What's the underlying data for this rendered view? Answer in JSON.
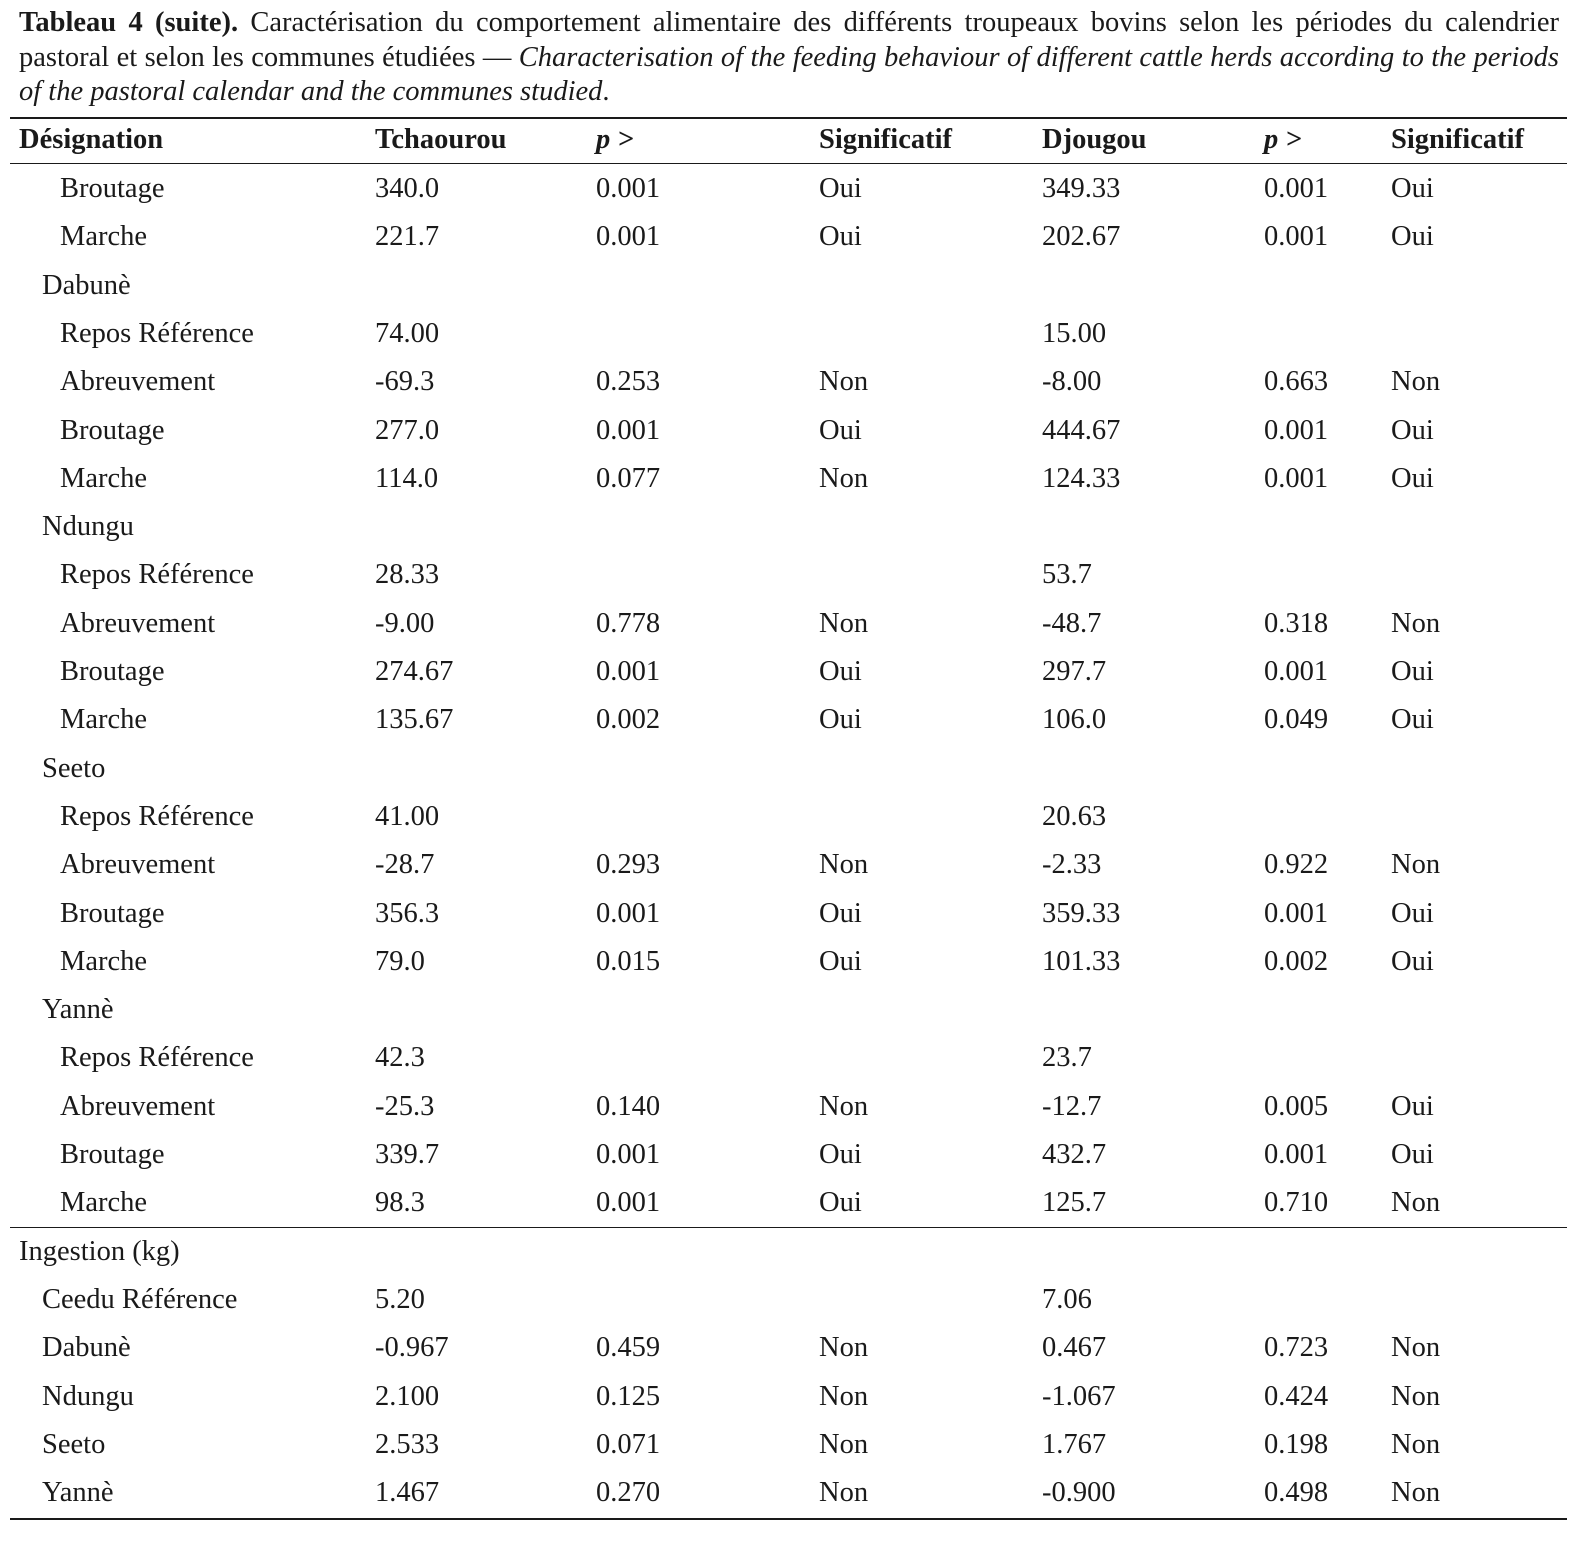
{
  "caption": {
    "label": "Tableau 4 (suite).",
    "text_fr": " Caractérisation du comportement alimentaire des différents troupeaux bovins selon les périodes du calendrier pastoral et selon les communes étudiées — ",
    "text_en": "Characterisation of the feeding behaviour of different cattle herds according to the periods of the pastoral calendar and the communes studied",
    "end": "."
  },
  "table": {
    "headers": [
      "Désignation",
      "Tchaourou",
      "p >",
      "Significatif",
      "Djougou",
      "p >",
      "Significatif"
    ],
    "rows": [
      {
        "level": 2,
        "cells": [
          "Broutage",
          "340.0",
          "0.001",
          "Oui",
          "349.33",
          "0.001",
          "Oui"
        ]
      },
      {
        "level": 2,
        "cells": [
          "Marche",
          "221.7",
          "0.001",
          "Oui",
          "202.67",
          "0.001",
          "Oui"
        ]
      },
      {
        "level": 1,
        "cells": [
          "Dabunè",
          "",
          "",
          "",
          "",
          "",
          ""
        ]
      },
      {
        "level": 2,
        "cells": [
          "Repos Référence",
          "74.00",
          "",
          "",
          "15.00",
          "",
          ""
        ]
      },
      {
        "level": 2,
        "cells": [
          "Abreuvement",
          "-69.3",
          "0.253",
          "Non",
          "-8.00",
          "0.663",
          "Non"
        ]
      },
      {
        "level": 2,
        "cells": [
          "Broutage",
          "277.0",
          "0.001",
          "Oui",
          "444.67",
          "0.001",
          "Oui"
        ]
      },
      {
        "level": 2,
        "cells": [
          "Marche",
          "114.0",
          "0.077",
          "Non",
          "124.33",
          "0.001",
          "Oui"
        ]
      },
      {
        "level": 1,
        "cells": [
          "Ndungu",
          "",
          "",
          "",
          "",
          "",
          ""
        ]
      },
      {
        "level": 2,
        "cells": [
          "Repos Référence",
          "28.33",
          "",
          "",
          "53.7",
          "",
          ""
        ]
      },
      {
        "level": 2,
        "cells": [
          "Abreuvement",
          "-9.00",
          "0.778",
          "Non",
          "-48.7",
          "0.318",
          "Non"
        ]
      },
      {
        "level": 2,
        "cells": [
          "Broutage",
          "274.67",
          "0.001",
          "Oui",
          "297.7",
          "0.001",
          "Oui"
        ]
      },
      {
        "level": 2,
        "cells": [
          "Marche",
          "135.67",
          "0.002",
          "Oui",
          "106.0",
          "0.049",
          "Oui"
        ]
      },
      {
        "level": 1,
        "cells": [
          "Seeto",
          "",
          "",
          "",
          "",
          "",
          ""
        ]
      },
      {
        "level": 2,
        "cells": [
          "Repos Référence",
          "41.00",
          "",
          "",
          "20.63",
          "",
          ""
        ]
      },
      {
        "level": 2,
        "cells": [
          "Abreuvement",
          "-28.7",
          "0.293",
          "Non",
          "-2.33",
          "0.922",
          "Non"
        ]
      },
      {
        "level": 2,
        "cells": [
          "Broutage",
          "356.3",
          "0.001",
          "Oui",
          "359.33",
          "0.001",
          "Oui"
        ]
      },
      {
        "level": 2,
        "cells": [
          "Marche",
          "79.0",
          "0.015",
          "Oui",
          "101.33",
          "0.002",
          "Oui"
        ]
      },
      {
        "level": 1,
        "cells": [
          "Yannè",
          "",
          "",
          "",
          "",
          "",
          ""
        ]
      },
      {
        "level": 2,
        "cells": [
          "Repos Référence",
          "42.3",
          "",
          "",
          "23.7",
          "",
          ""
        ]
      },
      {
        "level": 2,
        "cells": [
          "Abreuvement",
          "-25.3",
          "0.140",
          "Non",
          "-12.7",
          "0.005",
          "Oui"
        ]
      },
      {
        "level": 2,
        "cells": [
          "Broutage",
          "339.7",
          "0.001",
          "Oui",
          "432.7",
          "0.001",
          "Oui"
        ]
      },
      {
        "level": 2,
        "cells": [
          "Marche",
          "98.3",
          "0.001",
          "Oui",
          "125.7",
          "0.710",
          "Non"
        ]
      },
      {
        "level": 0,
        "cells": [
          "Ingestion (kg)",
          "",
          "",
          "",
          "",
          "",
          ""
        ]
      },
      {
        "level": 1,
        "cells": [
          "Ceedu Référence",
          "5.20",
          "",
          "",
          "7.06",
          "",
          ""
        ]
      },
      {
        "level": 1,
        "cells": [
          "Dabunè",
          "-0.967",
          "0.459",
          "Non",
          "0.467",
          "0.723",
          "Non"
        ]
      },
      {
        "level": 1,
        "cells": [
          "Ndungu",
          "2.100",
          "0.125",
          "Non",
          "-1.067",
          "0.424",
          "Non"
        ]
      },
      {
        "level": 1,
        "cells": [
          "Seeto",
          "2.533",
          "0.071",
          "Non",
          "1.767",
          "0.198",
          "Non"
        ]
      },
      {
        "level": 1,
        "cells": [
          "Yannè",
          "1.467",
          "0.270",
          "Non",
          "-0.900",
          "0.498",
          "Non"
        ]
      }
    ]
  }
}
